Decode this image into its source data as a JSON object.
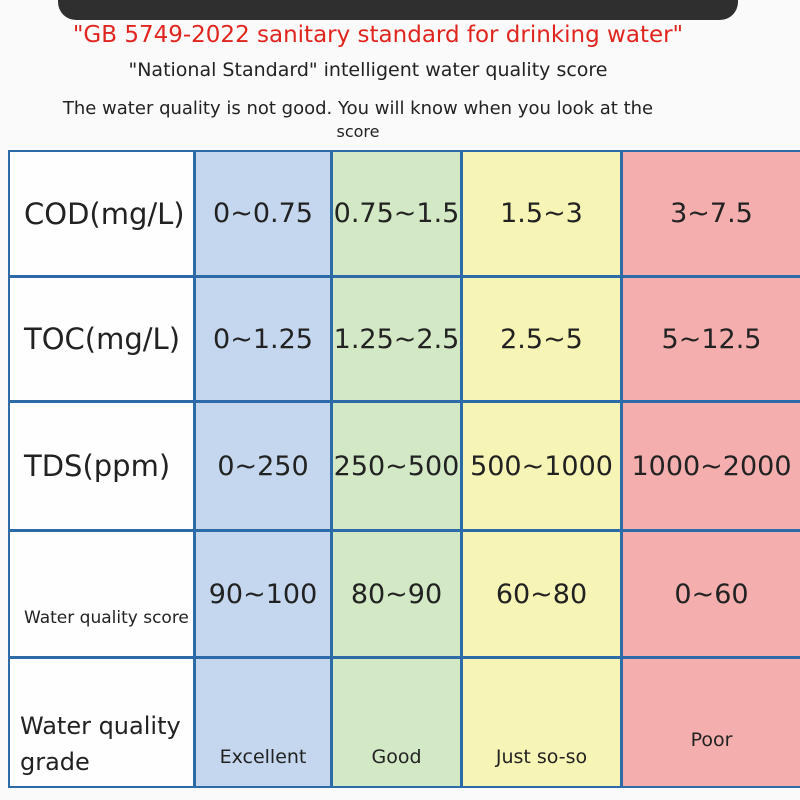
{
  "header": {
    "title": "\"GB 5749-2022 sanitary standard for drinking water\"",
    "subtitle": "\"National Standard\" intelligent water quality score",
    "note_line1": "The water quality is not good. You will know when you look at the",
    "note_line2": "score"
  },
  "table": {
    "rows": [
      {
        "label": "COD(mg/L)",
        "values": [
          "0~0.75",
          "0.75~1.5",
          "1.5~3",
          "3~7.5"
        ]
      },
      {
        "label": "TOC(mg/L)",
        "values": [
          "0~1.25",
          "1.25~2.5",
          "2.5~5",
          "5~12.5"
        ]
      },
      {
        "label": "TDS(ppm)",
        "values": [
          "0~250",
          "250~500",
          "500~1000",
          "1000~2000"
        ]
      },
      {
        "label": "Water quality score",
        "values": [
          "90~100",
          "80~90",
          "60~80",
          "0~60"
        ]
      },
      {
        "label": "Water quality grade",
        "values": [
          "Excellent",
          "Good",
          "Just so-so",
          "Poor"
        ]
      }
    ]
  },
  "colors": {
    "title_red": "#e0251f",
    "border_blue": "#2d6aa8",
    "excellent_blue": "#c5d7ee",
    "good_green": "#d3e9c6",
    "fair_yellow": "#f7f5b5",
    "poor_red": "#f5aeae"
  }
}
